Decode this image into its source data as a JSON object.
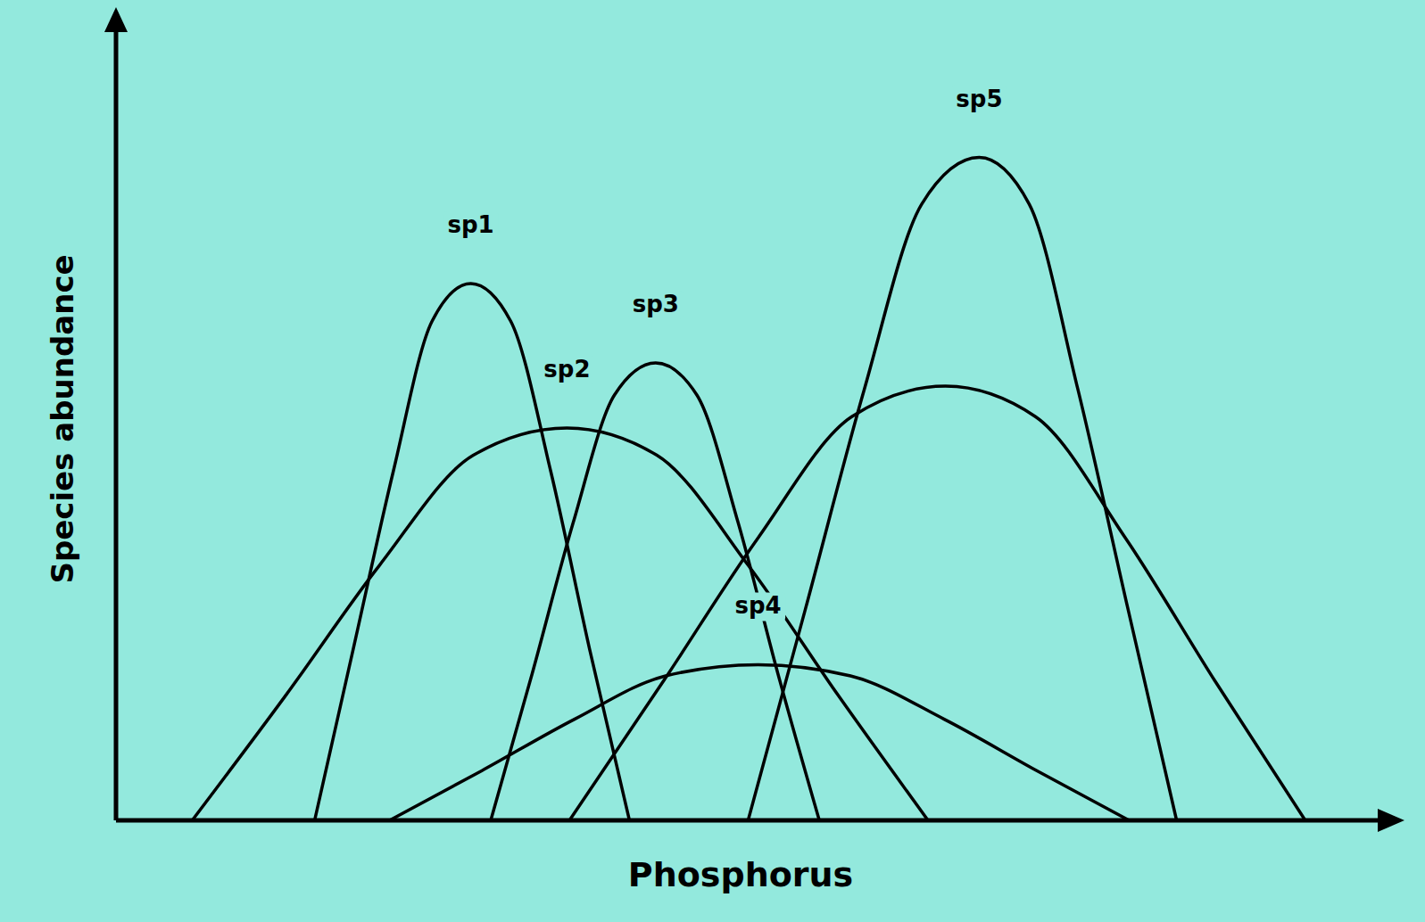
{
  "chart_data": {
    "type": "line",
    "x_label": "Phosphorus",
    "y_label": "Species abundance",
    "xlim": [
      0,
      100
    ],
    "ylim": [
      0,
      100
    ],
    "tick_labels": false,
    "grid": false,
    "series": [
      {
        "name": "sp1",
        "color": "#000000",
        "x": [
          15.9,
          19.0,
          22.2,
          25.3,
          28.4,
          31.6,
          34.8,
          37.9,
          41.1
        ],
        "values": [
          0,
          21.4,
          43.5,
          62.2,
          66.9,
          62.2,
          43.5,
          21.4,
          0
        ]
      },
      {
        "name": "sp2",
        "color": "#000000",
        "x": [
          6.1,
          13.6,
          21.1,
          28.6,
          36.1,
          43.3,
          50.6,
          57.8,
          65.0
        ],
        "values": [
          0,
          15.6,
          31.8,
          45.5,
          48.9,
          45.5,
          31.8,
          15.6,
          0
        ]
      },
      {
        "name": "sp3",
        "color": "#000000",
        "x": [
          30.0,
          33.3,
          36.6,
          39.9,
          43.2,
          46.5,
          49.8,
          53.0,
          56.3
        ],
        "values": [
          0,
          18.2,
          37.1,
          53.0,
          57.0,
          53.0,
          37.1,
          18.2,
          0
        ]
      },
      {
        "name": "sp4",
        "color": "#000000",
        "x": [
          21.9,
          29.3,
          36.7,
          44.0,
          51.4,
          58.8,
          66.3,
          73.7,
          81.1
        ],
        "values": [
          0,
          6.2,
          12.6,
          18.0,
          19.4,
          18.0,
          12.6,
          6.2,
          0
        ]
      },
      {
        "name": "sp5",
        "color": "#000000",
        "x": [
          50.6,
          55.2,
          59.9,
          64.5,
          69.1,
          73.1,
          77.0,
          81.0,
          84.9
        ],
        "values": [
          0,
          26.4,
          53.7,
          76.8,
          82.6,
          76.8,
          53.7,
          26.4,
          0
        ]
      },
      {
        "color": "#000000",
        "x": [
          36.3,
          43.8,
          51.4,
          58.9,
          66.4,
          73.6,
          80.8,
          88.0,
          95.2
        ],
        "values": [
          0,
          17.3,
          35.2,
          50.3,
          54.1,
          50.3,
          35.2,
          17.3,
          0
        ]
      }
    ]
  }
}
